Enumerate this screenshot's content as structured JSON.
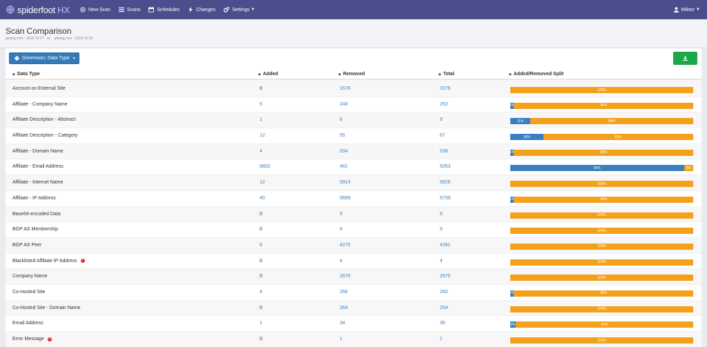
{
  "nav": {
    "brand": "spiderfoot",
    "brand_suffix": "HX",
    "items": [
      {
        "label": "New Scan",
        "icon": "target-icon"
      },
      {
        "label": "Scans",
        "icon": "list-icon"
      },
      {
        "label": "Schedules",
        "icon": "calendar-icon"
      },
      {
        "label": "Changes",
        "icon": "bolt-icon"
      },
      {
        "label": "Settings",
        "icon": "gears-icon"
      }
    ],
    "user": "Wiktor"
  },
  "header": {
    "title": "Scan Comparison",
    "scan_a": "ginseg.com - 2018-12-27",
    "vs": "vs.",
    "scan_b": "ginseg.com - 2018-12-23"
  },
  "toolbar": {
    "dimension_label": "Dimension: Data Type"
  },
  "columns": {
    "type": "Data Type",
    "added": "Added",
    "removed": "Removed",
    "total": "Total",
    "split": "Added/Removed Split"
  },
  "colors": {
    "added": "#3a7fc1",
    "removed": "#f3a11a",
    "nav": "#4b4e8c",
    "download": "#1ba84a",
    "warning": "#d9262a"
  },
  "rows": [
    {
      "type": "Account on External Site",
      "added": "0",
      "removed": "1576",
      "total": "1576",
      "add_pct": 0,
      "add_label": "",
      "rem_label": "100%"
    },
    {
      "type": "Affiliate - Company Name",
      "added": "5",
      "removed": "248",
      "total": "253",
      "add_pct": 2,
      "add_label": "2%",
      "rem_label": "98%"
    },
    {
      "type": "Affiliate Description - Abstract",
      "added": "1",
      "removed": "8",
      "total": "9",
      "add_pct": 11,
      "add_label": "11%",
      "rem_label": "89%"
    },
    {
      "type": "Affiliate Description - Category",
      "added": "12",
      "removed": "55",
      "total": "67",
      "add_pct": 18,
      "add_label": "18%",
      "rem_label": "82%"
    },
    {
      "type": "Affiliate - Domain Name",
      "added": "4",
      "removed": "534",
      "total": "538",
      "add_pct": 1,
      "add_label": "1%",
      "rem_label": "99%"
    },
    {
      "type": "Affiliate - Email Address",
      "added": "8802",
      "removed": "461",
      "total": "9263",
      "add_pct": 95,
      "add_label": "95%",
      "rem_label": "5%"
    },
    {
      "type": "Affiliate - Internet Name",
      "added": "12",
      "removed": "5914",
      "total": "5926",
      "add_pct": 0,
      "add_label": "",
      "rem_label": "100%"
    },
    {
      "type": "Affiliate - IP Address",
      "added": "40",
      "removed": "5699",
      "total": "5739",
      "add_pct": 1,
      "add_label": "1%",
      "rem_label": "99%"
    },
    {
      "type": "Base64-encoded Data",
      "added": "0",
      "removed": "5",
      "total": "5",
      "add_pct": 0,
      "add_label": "",
      "rem_label": "100%"
    },
    {
      "type": "BGP AS Membership",
      "added": "0",
      "removed": "9",
      "total": "9",
      "add_pct": 0,
      "add_label": "",
      "rem_label": "100%"
    },
    {
      "type": "BGP AS Peer",
      "added": "6",
      "removed": "4275",
      "total": "4281",
      "add_pct": 0,
      "add_label": "",
      "rem_label": "100%"
    },
    {
      "type": "Blacklisted Affiliate IP Address",
      "warn": "!",
      "added": "0",
      "removed": "4",
      "total": "4",
      "add_pct": 0,
      "add_label": "",
      "rem_label": "100%"
    },
    {
      "type": "Company Name",
      "added": "0",
      "removed": "2670",
      "total": "2670",
      "add_pct": 0,
      "add_label": "",
      "rem_label": "100%"
    },
    {
      "type": "Co-Hosted Site",
      "added": "4",
      "removed": "256",
      "total": "260",
      "add_pct": 2,
      "add_label": "2%",
      "rem_label": "98%"
    },
    {
      "type": "Co-Hosted Site - Domain Name",
      "added": "0",
      "removed": "264",
      "total": "264",
      "add_pct": 0,
      "add_label": "",
      "rem_label": "100%"
    },
    {
      "type": "Email Address",
      "added": "1",
      "removed": "34",
      "total": "35",
      "add_pct": 3,
      "add_label": "3%",
      "rem_label": "97%"
    },
    {
      "type": "Error Message",
      "warn": "!",
      "added": "0",
      "removed": "1",
      "total": "1",
      "add_pct": 0,
      "add_label": "",
      "rem_label": "100%"
    }
  ]
}
